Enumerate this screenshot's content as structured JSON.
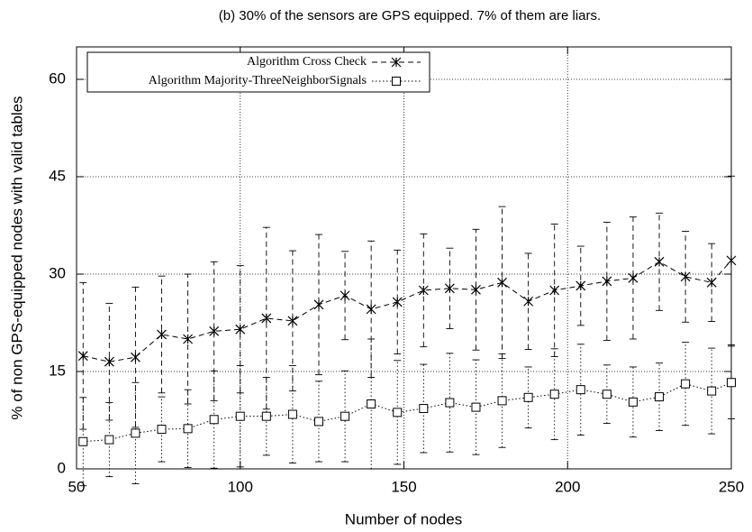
{
  "chart_data": {
    "type": "line",
    "title": "(b) 30% of the sensors are GPS equipped. 7% of them are liars.",
    "xlabel": "Number of nodes",
    "ylabel": "% of non GPS-equipped nodes with valid tables",
    "x": [
      52,
      60,
      68,
      76,
      84,
      92,
      100,
      108,
      116,
      124,
      132,
      140,
      148,
      156,
      164,
      172,
      180,
      188,
      196,
      204,
      212,
      220,
      228,
      236,
      244,
      250
    ],
    "series": [
      {
        "name": "Algorithm Cross Check",
        "color": "#000000",
        "line_style": "dashed",
        "marker": "x",
        "values": [
          17.4,
          16.5,
          17.2,
          20.7,
          20.0,
          21.2,
          21.5,
          23.2,
          22.8,
          25.3,
          26.7,
          24.6,
          25.7,
          27.5,
          27.8,
          27.6,
          28.7,
          25.8,
          27.5,
          28.2,
          28.9,
          29.4,
          31.9,
          29.6,
          28.7,
          32.1
        ],
        "errors": [
          11.3,
          9.0,
          10.8,
          9.0,
          10.0,
          10.7,
          9.8,
          14.0,
          10.8,
          10.8,
          6.8,
          10.5,
          8.0,
          8.7,
          6.2,
          9.3,
          11.7,
          7.4,
          10.2,
          6.1,
          9.1,
          9.4,
          7.5,
          7.0,
          6.0,
          13.0
        ]
      },
      {
        "name": "Algorithm Majority-ThreeNeighborSignals",
        "color": "#000000",
        "line_style": "dotted",
        "marker": "square",
        "values": [
          4.2,
          4.5,
          5.5,
          6.1,
          6.2,
          7.6,
          8.1,
          8.1,
          8.4,
          7.3,
          8.1,
          10.0,
          8.7,
          9.3,
          10.2,
          9.5,
          10.5,
          11.0,
          11.5,
          12.2,
          11.5,
          10.3,
          11.1,
          13.1,
          12.0,
          13.3
        ],
        "errors": [
          6.8,
          5.7,
          7.8,
          5.0,
          6.0,
          7.5,
          7.8,
          6.0,
          7.5,
          6.2,
          7.0,
          10.0,
          8.0,
          6.8,
          7.6,
          7.3,
          7.2,
          4.7,
          7.0,
          7.0,
          4.5,
          5.4,
          5.2,
          6.4,
          6.6,
          5.6
        ]
      }
    ],
    "xlim": [
      50,
      250
    ],
    "xticks": [
      50,
      100,
      150,
      200,
      250
    ],
    "ylim": [
      0,
      65
    ],
    "yticks": [
      0,
      15,
      30,
      45,
      60
    ],
    "grid": true,
    "legend": "upper left"
  }
}
